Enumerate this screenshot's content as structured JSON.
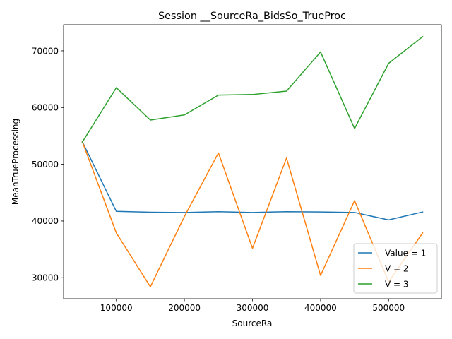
{
  "chart_data": {
    "type": "line",
    "title": "Session __SourceRa_BidsSo_TrueProc",
    "xlabel": "SourceRa",
    "ylabel": "MeanTrueProcessing",
    "x": [
      50000,
      100000,
      150000,
      200000,
      250000,
      300000,
      350000,
      400000,
      450000,
      500000,
      550000
    ],
    "xlim": [
      22500,
      577500
    ],
    "ylim": [
      26300,
      74600
    ],
    "xticks": [
      100000,
      200000,
      300000,
      400000,
      500000
    ],
    "xtick_labels": [
      "100000",
      "200000",
      "300000",
      "400000",
      "500000"
    ],
    "yticks": [
      30000,
      40000,
      50000,
      60000,
      70000
    ],
    "ytick_labels": [
      "30000",
      "40000",
      "50000",
      "60000",
      "70000"
    ],
    "grid": false,
    "legend_position": "lower right",
    "series": [
      {
        "name": "Value = 1",
        "color": "#1f77b4",
        "values": [
          54000,
          41700,
          41550,
          41500,
          41650,
          41500,
          41650,
          41600,
          41500,
          40200,
          41600
        ]
      },
      {
        "name": "V = 2",
        "color": "#ff7f0e",
        "values": [
          54000,
          37900,
          28400,
          40800,
          52000,
          35200,
          51100,
          30400,
          43600,
          29300,
          37900
        ]
      },
      {
        "name": "V = 3",
        "color": "#2ca02c",
        "values": [
          53900,
          63500,
          57800,
          58700,
          62200,
          62300,
          62900,
          69800,
          56300,
          67800,
          72500
        ]
      }
    ]
  }
}
